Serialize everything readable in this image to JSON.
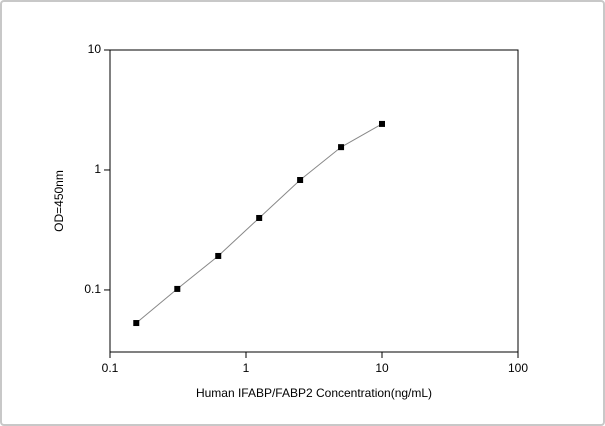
{
  "chart_data": {
    "type": "line",
    "x_label": "Human IFABP/FABP2 Concentration(ng/mL)",
    "y_label": "OD=450nm",
    "x": [
      0.156,
      0.3125,
      0.625,
      1.25,
      2.5,
      5,
      10
    ],
    "series": [
      {
        "values": [
          0.053,
          0.102,
          0.192,
          0.398,
          0.825,
          1.55,
          2.42
        ],
        "color": "#000000",
        "line_color": "#888888"
      }
    ],
    "x_log": true,
    "y_log": true,
    "xlim": [
      0.1,
      100
    ],
    "ylim": [
      0.0304,
      10
    ],
    "xticks": [
      0.1,
      1,
      10,
      100
    ],
    "yticks": [
      0.1,
      1,
      10
    ]
  }
}
